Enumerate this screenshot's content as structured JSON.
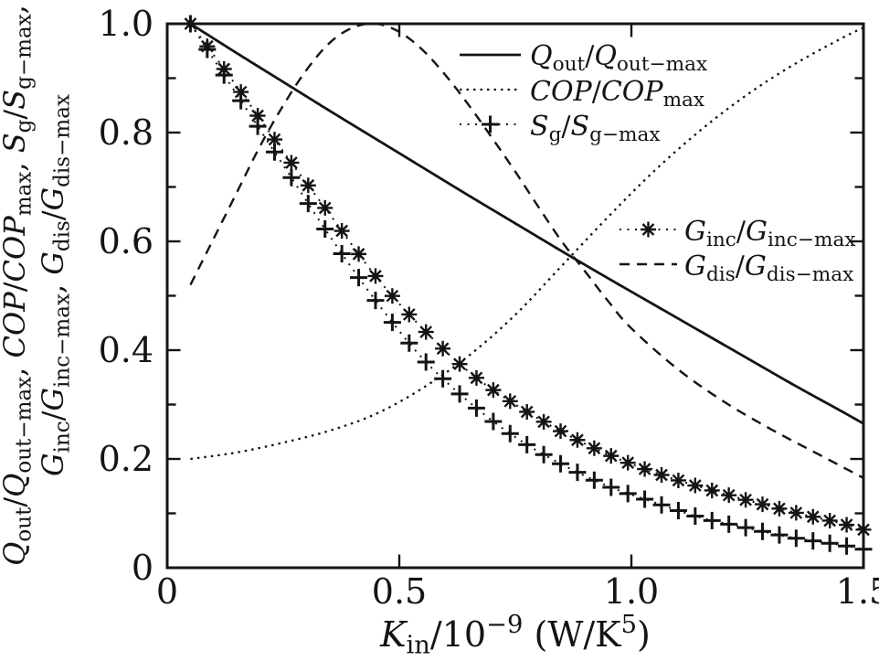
{
  "figure": {
    "description": "Normalized performance curves versus inlet thermal conductance",
    "background": "#ffffff",
    "ink_color": "#141414"
  },
  "chart_data": {
    "type": "line",
    "title": "",
    "xlabel": "$K$_{in}/10^{−9} (W/K^{5})",
    "ylabel_lines": [
      "$Q$_{out}/$Q$_{out−max}, $COP$/$COP$_{max}, $S$_{g}/$S$_{g−max},",
      "$G$_{inc}/$G$_{inc−max}, $G$_{dis}/$G$_{dis−max}"
    ],
    "xlim": [
      0,
      1.5
    ],
    "ylim": [
      0,
      1.0
    ],
    "grid": false,
    "x_ticks": {
      "major": [
        0,
        0.5,
        1.0,
        1.5
      ],
      "labels": [
        "0",
        "0.5",
        "1.0",
        "1.5"
      ],
      "minor": []
    },
    "y_ticks": {
      "major": [
        0,
        0.2,
        0.4,
        0.6,
        0.8,
        1.0
      ],
      "labels": [
        "0",
        "0.2",
        "0.4",
        "0.6",
        "0.8",
        "1.0"
      ],
      "minor": [
        0.1,
        0.3,
        0.5,
        0.7,
        0.9
      ]
    },
    "series": [
      {
        "id": "Qout",
        "label": "$Q$_{out}/$Q$_{out−max}",
        "line": "solid",
        "marker": null,
        "x": [
          0.05,
          0.15,
          0.25,
          0.35,
          0.45,
          0.55,
          0.65,
          0.75,
          0.85,
          0.95,
          1.05,
          1.15,
          1.25,
          1.35,
          1.45,
          1.5
        ],
        "y": [
          1.0,
          0.946,
          0.893,
          0.84,
          0.788,
          0.736,
          0.684,
          0.633,
          0.582,
          0.532,
          0.483,
          0.434,
          0.385,
          0.336,
          0.289,
          0.265
        ]
      },
      {
        "id": "COP",
        "label": "$COP$/$COP$_{max}",
        "line": "dotted",
        "marker": null,
        "x": [
          0.05,
          0.15,
          0.25,
          0.35,
          0.45,
          0.55,
          0.65,
          0.75,
          0.85,
          0.95,
          1.05,
          1.15,
          1.25,
          1.35,
          1.45,
          1.5
        ],
        "y": [
          0.2,
          0.212,
          0.23,
          0.252,
          0.283,
          0.33,
          0.39,
          0.465,
          0.555,
          0.645,
          0.73,
          0.805,
          0.87,
          0.925,
          0.972,
          0.993
        ]
      },
      {
        "id": "Sg",
        "label": "$S$_{g}/$S$_{g−max}",
        "line": "dotted",
        "marker": "plus",
        "marker_x_start": 0.05,
        "marker_x_step": 0.03625,
        "marker_count": 41,
        "x": [
          0.05,
          0.15,
          0.25,
          0.35,
          0.45,
          0.55,
          0.65,
          0.75,
          0.85,
          0.95,
          1.05,
          1.15,
          1.25,
          1.35,
          1.45,
          1.5
        ],
        "y": [
          1.0,
          0.87,
          0.74,
          0.61,
          0.49,
          0.385,
          0.305,
          0.24,
          0.19,
          0.15,
          0.12,
          0.092,
          0.073,
          0.055,
          0.042,
          0.034
        ]
      },
      {
        "id": "Ginc",
        "label": "$G$_{inc}/$G$_{inc−max}",
        "line": "dotted",
        "marker": "asterisk",
        "marker_x_start": 0.05,
        "marker_x_step": 0.03625,
        "marker_count": 41,
        "x": [
          0.05,
          0.15,
          0.25,
          0.35,
          0.45,
          0.55,
          0.65,
          0.75,
          0.85,
          0.95,
          1.05,
          1.15,
          1.25,
          1.35,
          1.45,
          1.5
        ],
        "y": [
          1.0,
          0.885,
          0.765,
          0.65,
          0.535,
          0.44,
          0.36,
          0.3,
          0.25,
          0.208,
          0.175,
          0.148,
          0.124,
          0.102,
          0.082,
          0.07
        ]
      },
      {
        "id": "Gdis",
        "label": "$G$_{dis}/$G$_{dis−max}",
        "line": "dashed",
        "marker": null,
        "x": [
          0.05,
          0.1,
          0.15,
          0.2,
          0.25,
          0.3,
          0.35,
          0.4,
          0.45,
          0.5,
          0.55,
          0.6,
          0.65,
          0.7,
          0.75,
          0.8,
          0.85,
          0.9,
          0.95,
          1.0,
          1.1,
          1.2,
          1.3,
          1.4,
          1.5
        ],
        "y": [
          0.52,
          0.605,
          0.69,
          0.775,
          0.85,
          0.915,
          0.965,
          0.993,
          1.0,
          0.985,
          0.952,
          0.905,
          0.85,
          0.79,
          0.728,
          0.663,
          0.6,
          0.545,
          0.49,
          0.44,
          0.365,
          0.305,
          0.255,
          0.21,
          0.165
        ]
      }
    ],
    "legends": [
      {
        "series": [
          "Qout",
          "COP",
          "Sg"
        ],
        "position": "upper-right-inside"
      },
      {
        "series": [
          "Ginc",
          "Gdis"
        ],
        "position": "middle-right-inside"
      }
    ],
    "legend_frame": false
  }
}
